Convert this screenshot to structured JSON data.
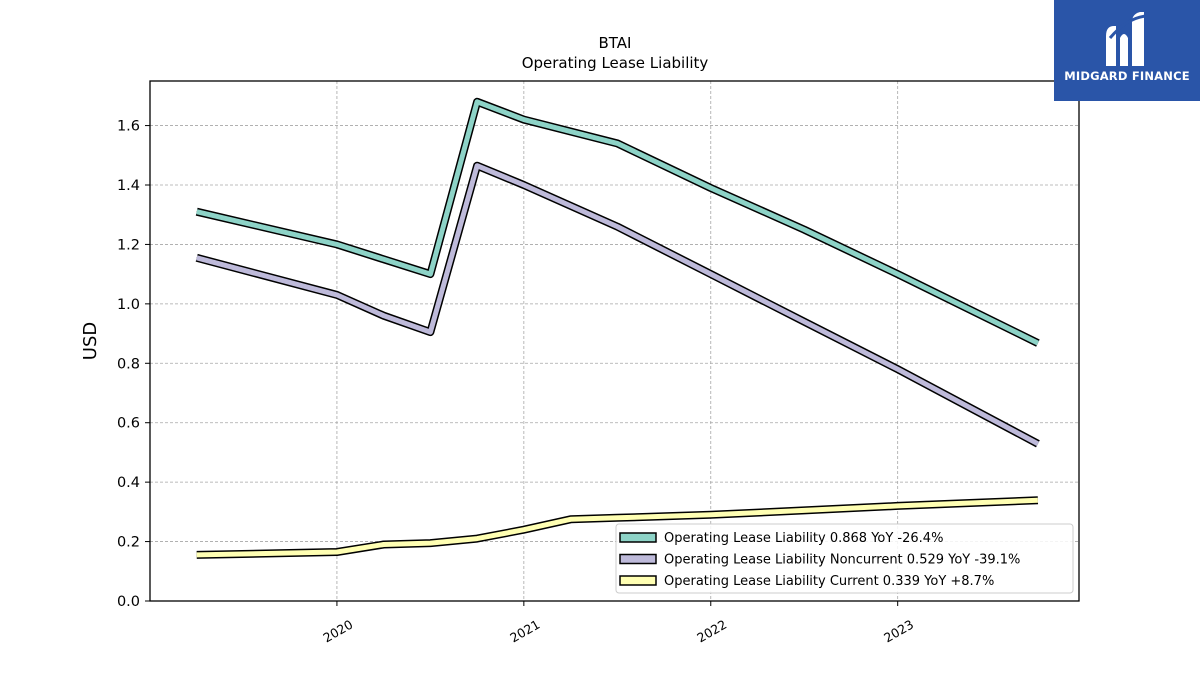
{
  "brand": {
    "name": "MIDGARD FINANCE",
    "logo_icon": "midgard-m-logo-icon",
    "bg_color": "#2a55a8"
  },
  "chart_data": {
    "type": "line",
    "title": "BTAI",
    "subtitle": "Operating Lease Liability",
    "xlabel": "",
    "ylabel": "USD",
    "ylim": [
      0,
      1.75
    ],
    "xlim": [
      2019.0,
      2023.97
    ],
    "yticks": [
      0.0,
      0.2,
      0.4,
      0.6,
      0.8,
      1.0,
      1.2,
      1.4,
      1.6
    ],
    "ytick_labels": [
      "0.0",
      "0.2",
      "0.4",
      "0.6",
      "0.8",
      "1.0",
      "1.2",
      "1.4",
      "1.6"
    ],
    "xticks": [
      2020,
      2021,
      2022,
      2023
    ],
    "xtick_labels": [
      "2020",
      "2021",
      "2022",
      "2023"
    ],
    "grid": true,
    "legend_position": "lower-right",
    "series": [
      {
        "name": "Operating Lease Liability",
        "legend_label": "Operating Lease Liability  0.868 YoY -26.4%",
        "color": "#8dd3c7",
        "x": [
          2019.25,
          2020.0,
          2020.25,
          2020.5,
          2020.75,
          2021.0,
          2021.5,
          2022.0,
          2022.5,
          2023.0,
          2023.75
        ],
        "y": [
          1.31,
          1.2,
          1.15,
          1.1,
          1.68,
          1.62,
          1.54,
          1.39,
          1.25,
          1.1,
          0.868
        ]
      },
      {
        "name": "Operating Lease Liability Noncurrent",
        "legend_label": "Operating Lease Liability Noncurrent  0.529 YoY -39.1%",
        "color": "#bebada",
        "x": [
          2019.25,
          2020.0,
          2020.25,
          2020.5,
          2020.75,
          2021.0,
          2021.5,
          2022.0,
          2022.5,
          2023.0,
          2023.75
        ],
        "y": [
          1.155,
          1.03,
          0.96,
          0.905,
          1.465,
          1.4,
          1.26,
          1.1,
          0.94,
          0.78,
          0.529
        ]
      },
      {
        "name": "Operating Lease Liability Current",
        "legend_label": "Operating Lease Liability Current  0.339 YoY +8.7%",
        "color": "#ffffb3",
        "x": [
          2019.25,
          2020.0,
          2020.25,
          2020.5,
          2020.75,
          2021.0,
          2021.25,
          2021.5,
          2022.0,
          2022.5,
          2023.0,
          2023.75
        ],
        "y": [
          0.155,
          0.165,
          0.19,
          0.195,
          0.21,
          0.24,
          0.275,
          0.28,
          0.29,
          0.305,
          0.32,
          0.339
        ]
      }
    ]
  }
}
